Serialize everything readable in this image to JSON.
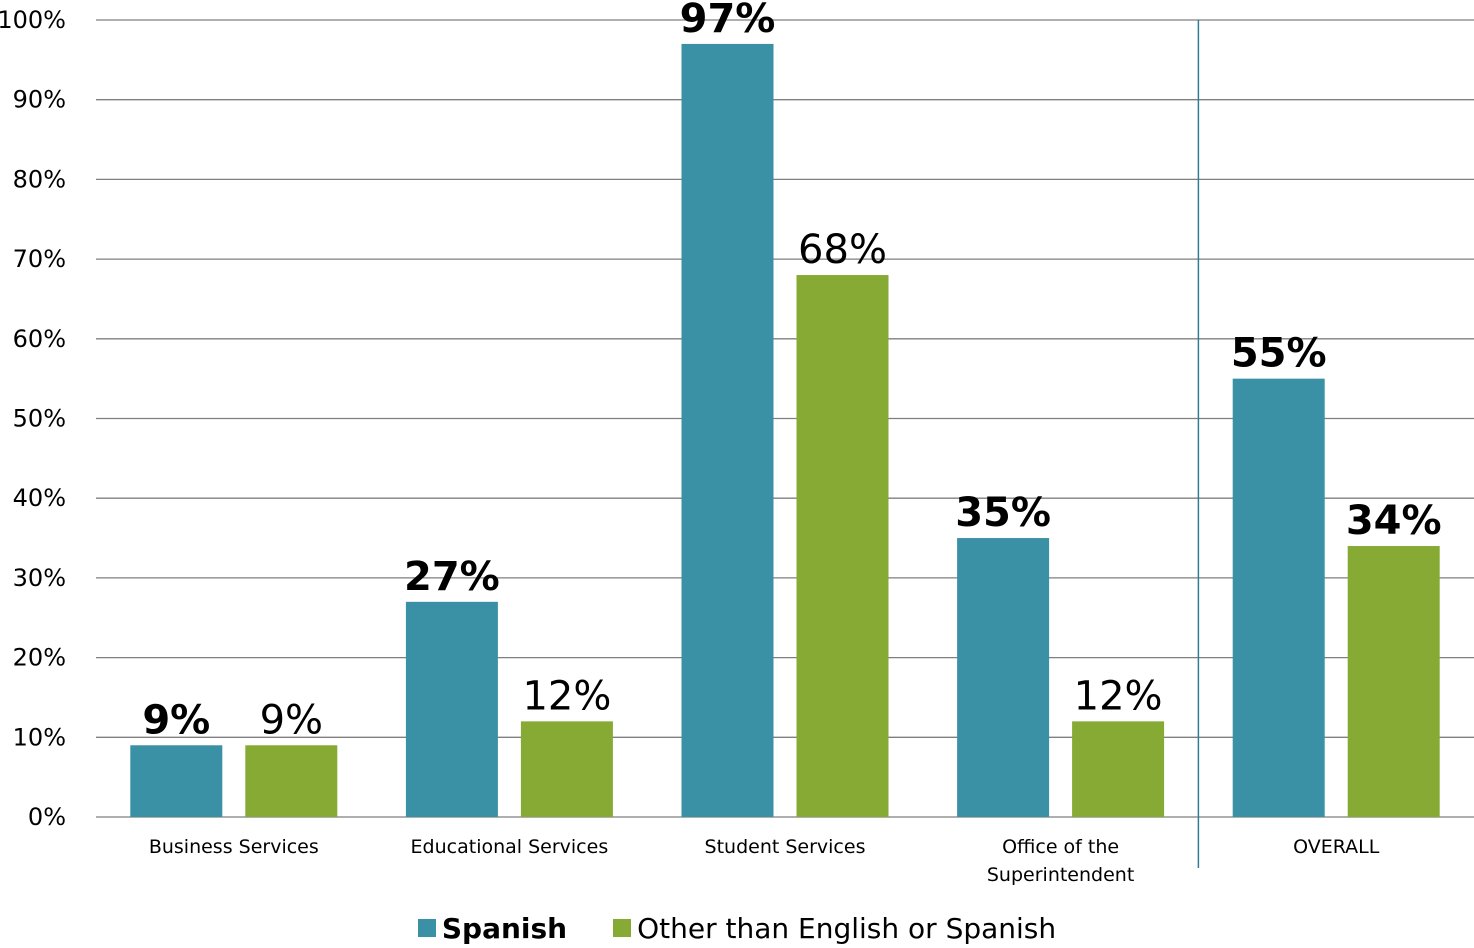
{
  "colors": {
    "spanish": "#3a91a6",
    "other": "#86aa34",
    "grid": "#7f7f7f",
    "divider": "#2e7f8f"
  },
  "chart_data": {
    "type": "bar",
    "categories": [
      "Business Services",
      "Educational Services",
      "Student Services",
      "Office of the Superintendent",
      "OVERALL"
    ],
    "category_lines": [
      [
        "Business Services"
      ],
      [
        "Educational Services"
      ],
      [
        "Student Services"
      ],
      [
        "Office of the",
        "Superintendent"
      ],
      [
        "OVERALL"
      ]
    ],
    "series": [
      {
        "name": "Spanish",
        "values": [
          9,
          27,
          97,
          35,
          55
        ],
        "labels": [
          "9%",
          "27%",
          "97%",
          "35%",
          "55%"
        ],
        "bold_labels": [
          true,
          true,
          true,
          true,
          true
        ]
      },
      {
        "name": "Other than English or Spanish",
        "values": [
          9,
          12,
          68,
          12,
          34
        ],
        "labels": [
          "9%",
          "12%",
          "68%",
          "12%",
          "34%"
        ],
        "bold_labels": [
          false,
          false,
          false,
          false,
          true
        ]
      }
    ],
    "yticks": [
      "0%",
      "10%",
      "20%",
      "30%",
      "40%",
      "50%",
      "60%",
      "70%",
      "80%",
      "90%",
      "100%"
    ],
    "ylim": [
      0,
      100
    ],
    "grid": true,
    "legend_position": "bottom"
  }
}
